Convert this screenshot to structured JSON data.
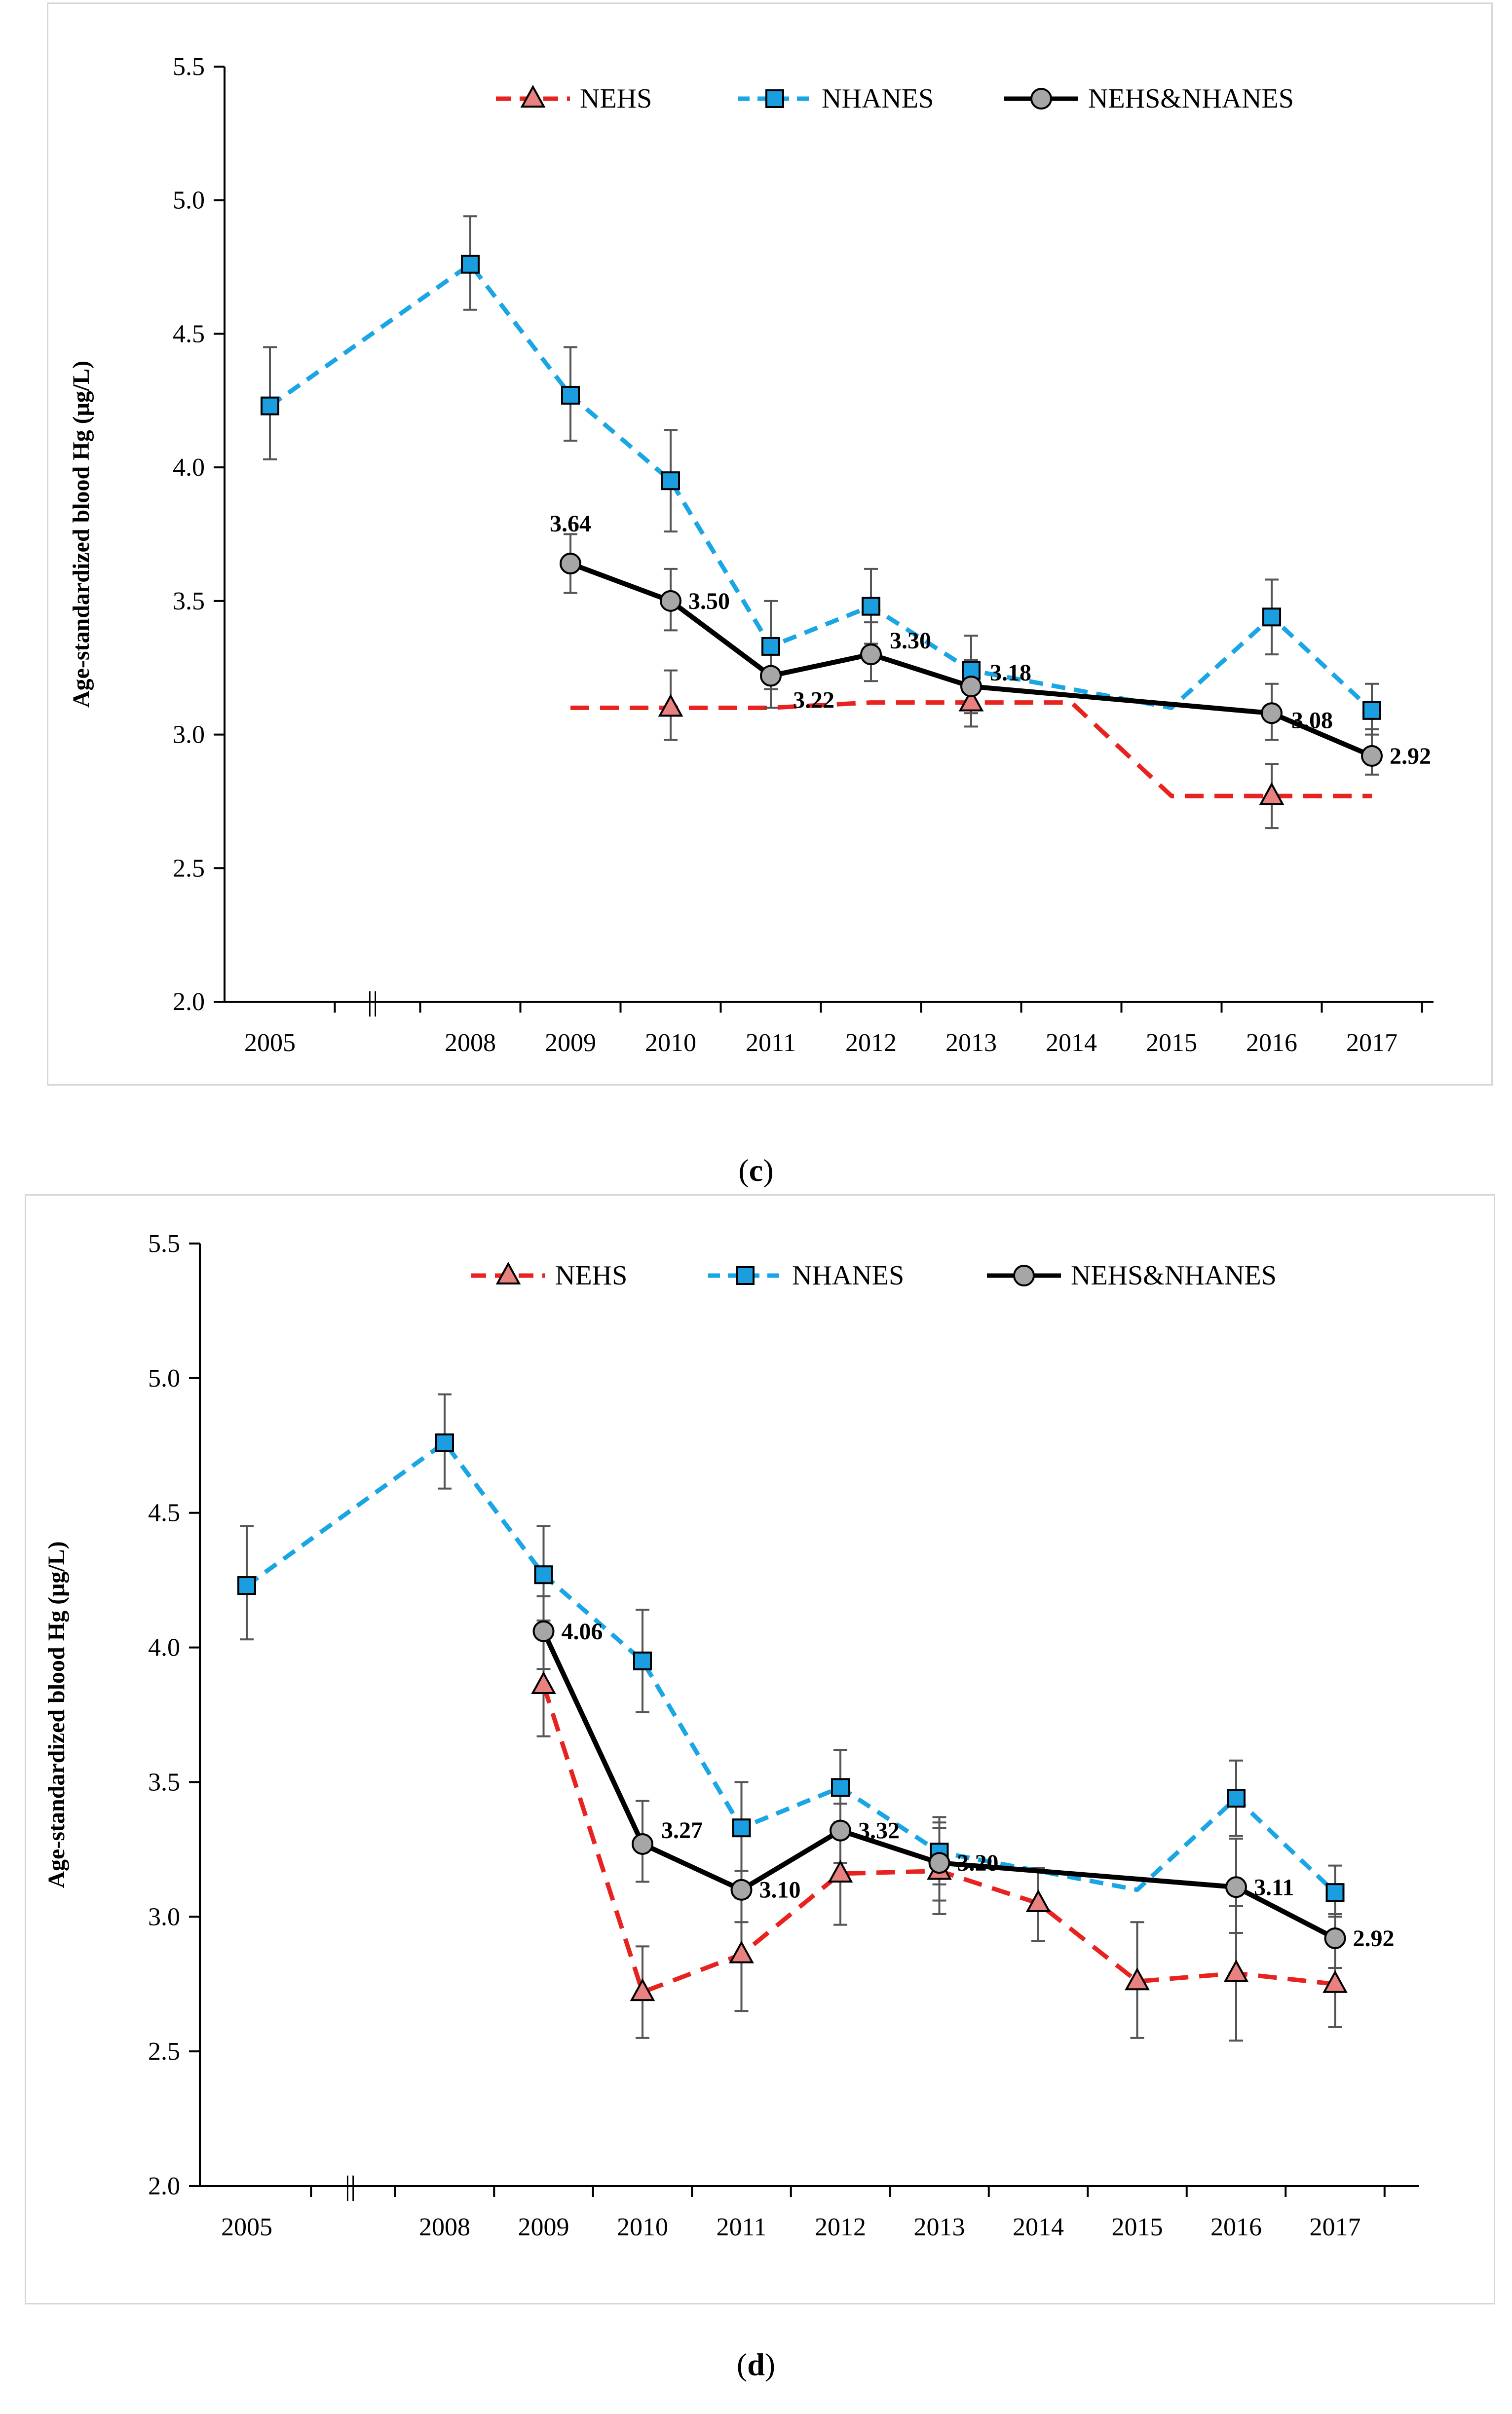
{
  "captions": {
    "c_open": "(",
    "c_letter": "c",
    "c_close": ")",
    "d_open": "(",
    "d_letter": "d",
    "d_close": ")"
  },
  "chart_data": [
    {
      "type": "line",
      "panel": "c",
      "ylabel": "Age-standardized blood Hg (μg/L)",
      "xlabel": "",
      "ylim": [
        2.0,
        5.5
      ],
      "yticks": [
        "2.0",
        "2.5",
        "3.0",
        "3.5",
        "4.0",
        "4.5",
        "5.0",
        "5.5"
      ],
      "categories": [
        "2005",
        "2008",
        "2009",
        "2010",
        "2011",
        "2012",
        "2013",
        "2014",
        "2015",
        "2016",
        "2017"
      ],
      "axis_break": "||",
      "legend": [
        "NEHS",
        "NHANES",
        "NEHS&NHANES"
      ],
      "legend_position": "top-right",
      "colors": {
        "NEHS": "#e8231f",
        "NHANES": "#1aa6e4",
        "NEHS&NHANES": "#000000",
        "nehs_marker": "#e98181",
        "nhanes_marker": "#1a9ee0",
        "combined_marker": "#a6a6a6",
        "error": "#555555"
      },
      "series": [
        {
          "name": "NHANES",
          "style": "dashed",
          "marker": "square",
          "x": [
            "2005",
            "2008",
            "2009",
            "2010",
            "2011",
            "2012",
            "2013",
            "2015",
            "2016",
            "2017"
          ],
          "values": [
            4.23,
            4.76,
            4.27,
            3.95,
            3.33,
            3.48,
            3.24,
            3.1,
            3.44,
            3.09
          ],
          "marker_mask": [
            true,
            true,
            true,
            true,
            true,
            true,
            true,
            false,
            true,
            true
          ],
          "err_lo": [
            4.03,
            4.59,
            4.1,
            3.76,
            3.17,
            3.34,
            3.12,
            null,
            3.3,
            3.0
          ],
          "err_hi": [
            4.45,
            4.94,
            4.45,
            4.14,
            3.5,
            3.62,
            3.37,
            null,
            3.58,
            3.19
          ]
        },
        {
          "name": "NEHS",
          "style": "dashed",
          "marker": "triangle",
          "x": [
            "2009",
            "2010",
            "2011",
            "2012",
            "2013",
            "2014",
            "2015",
            "2016",
            "2017"
          ],
          "values": [
            3.1,
            3.1,
            3.1,
            3.12,
            3.12,
            3.12,
            2.77,
            2.77,
            2.77
          ],
          "marker_mask": [
            false,
            true,
            false,
            false,
            true,
            false,
            false,
            true,
            false
          ],
          "err_lo": [
            null,
            2.98,
            null,
            null,
            3.03,
            null,
            null,
            2.65,
            null
          ],
          "err_hi": [
            null,
            3.24,
            null,
            null,
            3.22,
            null,
            null,
            2.89,
            null
          ]
        },
        {
          "name": "NEHS&NHANES",
          "style": "solid",
          "marker": "circle",
          "x": [
            "2009",
            "2010",
            "2011",
            "2012",
            "2013",
            "2016",
            "2017"
          ],
          "values": [
            3.64,
            3.5,
            3.22,
            3.3,
            3.18,
            3.08,
            2.92
          ],
          "marker_mask": [
            true,
            true,
            true,
            true,
            true,
            true,
            true
          ],
          "err_lo": [
            3.53,
            3.39,
            3.1,
            3.2,
            3.08,
            2.98,
            2.85
          ],
          "err_hi": [
            3.75,
            3.62,
            3.35,
            3.42,
            3.28,
            3.19,
            3.02
          ]
        }
      ],
      "data_labels": [
        {
          "text": "3.64",
          "x": "2009",
          "y": 3.64,
          "pos": "above"
        },
        {
          "text": "3.50",
          "x": "2010",
          "y": 3.5,
          "pos": "right"
        },
        {
          "text": "3.22",
          "x": "2011",
          "y": 3.22,
          "pos": "below-right"
        },
        {
          "text": "3.30",
          "x": "2012",
          "y": 3.3,
          "pos": "right-up"
        },
        {
          "text": "3.18",
          "x": "2013",
          "y": 3.18,
          "pos": "right-up"
        },
        {
          "text": "3.08",
          "x": "2016",
          "y": 3.08,
          "pos": "right-down"
        },
        {
          "text": "2.92",
          "x": "2017",
          "y": 2.92,
          "pos": "right"
        }
      ]
    },
    {
      "type": "line",
      "panel": "d",
      "ylabel": "Age-standardized blood Hg (μg/L)",
      "xlabel": "",
      "ylim": [
        2.0,
        5.5
      ],
      "yticks": [
        "2.0",
        "2.5",
        "3.0",
        "3.5",
        "4.0",
        "4.5",
        "5.0",
        "5.5"
      ],
      "categories": [
        "2005",
        "2008",
        "2009",
        "2010",
        "2011",
        "2012",
        "2013",
        "2014",
        "2015",
        "2016",
        "2017"
      ],
      "axis_break": "||",
      "legend": [
        "NEHS",
        "NHANES",
        "NEHS&NHANES"
      ],
      "legend_position": "top-right",
      "colors": {
        "NEHS": "#e8231f",
        "NHANES": "#1aa6e4",
        "NEHS&NHANES": "#000000",
        "nehs_marker": "#e98181",
        "nhanes_marker": "#1a9ee0",
        "combined_marker": "#a6a6a6",
        "error": "#555555"
      },
      "series": [
        {
          "name": "NHANES",
          "style": "dashed",
          "marker": "square",
          "x": [
            "2005",
            "2008",
            "2009",
            "2010",
            "2011",
            "2012",
            "2013",
            "2015",
            "2016",
            "2017"
          ],
          "values": [
            4.23,
            4.76,
            4.27,
            3.95,
            3.33,
            3.48,
            3.24,
            3.1,
            3.44,
            3.09
          ],
          "marker_mask": [
            true,
            true,
            true,
            true,
            true,
            true,
            true,
            false,
            true,
            true
          ],
          "err_lo": [
            4.03,
            4.59,
            4.1,
            3.76,
            3.17,
            3.34,
            3.12,
            null,
            3.3,
            3.0
          ],
          "err_hi": [
            4.45,
            4.94,
            4.45,
            4.14,
            3.5,
            3.62,
            3.37,
            null,
            3.58,
            3.19
          ]
        },
        {
          "name": "NEHS",
          "style": "dashed",
          "marker": "triangle",
          "x": [
            "2009",
            "2010",
            "2011",
            "2012",
            "2013",
            "2014",
            "2015",
            "2016",
            "2017"
          ],
          "values": [
            3.86,
            2.72,
            2.86,
            3.16,
            3.17,
            3.05,
            2.76,
            2.79,
            2.75
          ],
          "marker_mask": [
            true,
            true,
            true,
            true,
            true,
            true,
            true,
            true,
            true
          ],
          "err_lo": [
            3.67,
            2.55,
            2.65,
            2.97,
            3.01,
            2.91,
            2.55,
            2.54,
            2.59
          ],
          "err_hi": [
            4.05,
            2.89,
            3.07,
            3.35,
            3.33,
            3.18,
            2.98,
            3.04,
            2.91
          ]
        },
        {
          "name": "NEHS&NHANES",
          "style": "solid",
          "marker": "circle",
          "x": [
            "2009",
            "2010",
            "2011",
            "2012",
            "2013",
            "2016",
            "2017"
          ],
          "values": [
            4.06,
            3.27,
            3.1,
            3.32,
            3.2,
            3.11,
            2.92
          ],
          "marker_mask": [
            true,
            true,
            true,
            true,
            true,
            true,
            true
          ],
          "err_lo": [
            3.92,
            3.13,
            2.98,
            3.2,
            3.06,
            2.94,
            2.81
          ],
          "err_hi": [
            4.19,
            3.43,
            3.17,
            3.42,
            3.35,
            3.29,
            3.01
          ]
        }
      ],
      "data_labels": [
        {
          "text": "4.06",
          "x": "2009",
          "y": 4.06,
          "pos": "right"
        },
        {
          "text": "3.27",
          "x": "2010",
          "y": 3.27,
          "pos": "right-up"
        },
        {
          "text": "3.10",
          "x": "2011",
          "y": 3.1,
          "pos": "right"
        },
        {
          "text": "3.32",
          "x": "2012",
          "y": 3.32,
          "pos": "right"
        },
        {
          "text": "3.20",
          "x": "2013",
          "y": 3.2,
          "pos": "right"
        },
        {
          "text": "3.11",
          "x": "2016",
          "y": 3.11,
          "pos": "right"
        },
        {
          "text": "2.92",
          "x": "2017",
          "y": 2.92,
          "pos": "right"
        }
      ]
    }
  ]
}
